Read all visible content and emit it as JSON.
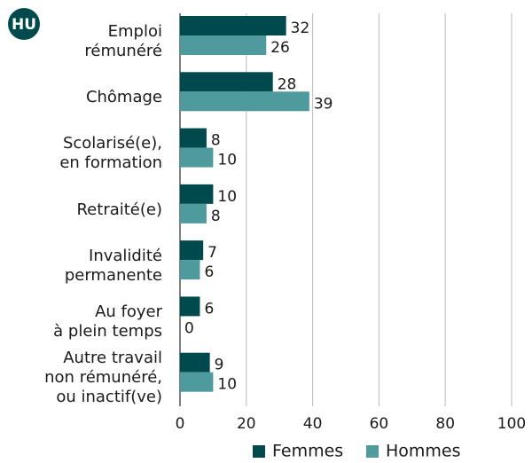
{
  "chart_data": {
    "type": "hbar",
    "badge": "HU",
    "categories": [
      "Emploi\nrémunéré",
      "Chômage",
      "Scolarisé(e),\nen formation",
      "Retraité(e)",
      "Invalidité\npermanente",
      "Au foyer\nà plein temps",
      "Autre travail\nnon rémunéré,\nou inactif(ve)"
    ],
    "series": [
      {
        "name": "Femmes",
        "color": "#00494d",
        "values": [
          32,
          28,
          8,
          10,
          7,
          6,
          9
        ]
      },
      {
        "name": "Hommes",
        "color": "#4e9a9d",
        "values": [
          26,
          39,
          10,
          8,
          6,
          0,
          10
        ]
      }
    ],
    "xlim": [
      0,
      100
    ],
    "xticks": [
      0,
      20,
      40,
      60,
      80,
      100
    ],
    "grid": true,
    "legend": "bottom"
  }
}
